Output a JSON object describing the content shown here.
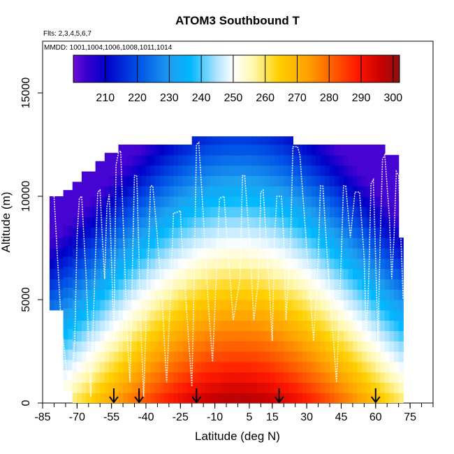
{
  "chart_data": {
    "type": "heatmap",
    "title": "ATOM3 Southbound T",
    "subtitle_flights": "Flts: 2,3,4,5,6,7",
    "subtitle_dates": "MMDD: 1001,1004,1006,1008,1011,1014",
    "xlabel": "Latitude (deg N)",
    "ylabel": "Altitude (m)",
    "xlim": [
      -85,
      85
    ],
    "ylim": [
      0,
      17500
    ],
    "x_ticks": [
      -85,
      -70,
      -55,
      -40,
      -25,
      -10,
      5,
      15,
      30,
      45,
      60,
      75
    ],
    "y_ticks": [
      0,
      5000,
      10000,
      15000
    ],
    "colorbar": {
      "range": [
        200,
        302
      ],
      "ticks": [
        210,
        220,
        230,
        240,
        250,
        260,
        270,
        280,
        290,
        300
      ]
    },
    "arrow_latitudes": [
      -54,
      -43,
      -18,
      18,
      60
    ],
    "flight_track_points": [
      [
        -80,
        10000
      ],
      [
        -79,
        8000
      ],
      [
        -78,
        6000
      ],
      [
        -77,
        4000
      ],
      [
        -75,
        2000
      ],
      [
        -73,
        300
      ],
      [
        -71,
        3000
      ],
      [
        -70,
        8000
      ],
      [
        -69,
        9900
      ],
      [
        -68,
        10000
      ],
      [
        -67,
        8000
      ],
      [
        -66,
        6000
      ],
      [
        -65,
        3000
      ],
      [
        -64,
        300
      ],
      [
        -62,
        7000
      ],
      [
        -61,
        10200
      ],
      [
        -60,
        10300
      ],
      [
        -59,
        8000
      ],
      [
        -58,
        6000
      ],
      [
        -57,
        9500
      ],
      [
        -56,
        10100
      ],
      [
        -55,
        7000
      ],
      [
        -54,
        3000
      ],
      [
        -53,
        11500
      ],
      [
        -52,
        12100
      ],
      [
        -51,
        12200
      ],
      [
        -50,
        9000
      ],
      [
        -49,
        6000
      ],
      [
        -48,
        3000
      ],
      [
        -47,
        1000
      ],
      [
        -46,
        6000
      ],
      [
        -45,
        11000
      ],
      [
        -44,
        11000
      ],
      [
        -43,
        7000
      ],
      [
        -42,
        3000
      ],
      [
        -41,
        300
      ],
      [
        -39,
        7000
      ],
      [
        -38,
        10500
      ],
      [
        -37,
        10500
      ],
      [
        -35,
        8000
      ],
      [
        -33,
        5000
      ],
      [
        -31,
        1000
      ],
      [
        -29,
        6000
      ],
      [
        -28,
        9200
      ],
      [
        -27,
        9200
      ],
      [
        -25,
        9300
      ],
      [
        -24,
        7000
      ],
      [
        -22,
        4000
      ],
      [
        -20,
        800
      ],
      [
        -19,
        6000
      ],
      [
        -18,
        12500
      ],
      [
        -17,
        12600
      ],
      [
        -15,
        9000
      ],
      [
        -13,
        5000
      ],
      [
        -11,
        2000
      ],
      [
        -9,
        7000
      ],
      [
        -8,
        9900
      ],
      [
        -6,
        10000
      ],
      [
        -4,
        7000
      ],
      [
        -2,
        4000
      ],
      [
        1,
        6000
      ],
      [
        2,
        11000
      ],
      [
        3,
        11000
      ],
      [
        5,
        8000
      ],
      [
        7,
        4000
      ],
      [
        9,
        6000
      ],
      [
        10,
        10200
      ],
      [
        11,
        10300
      ],
      [
        13,
        7000
      ],
      [
        15,
        3000
      ],
      [
        16,
        8000
      ],
      [
        17,
        10000
      ],
      [
        19,
        10000
      ],
      [
        20,
        8000
      ],
      [
        21,
        4000
      ],
      [
        23,
        8000
      ],
      [
        24,
        12400
      ],
      [
        26,
        12400
      ],
      [
        27,
        12000
      ],
      [
        29,
        9000
      ],
      [
        31,
        6000
      ],
      [
        33,
        3000
      ],
      [
        35,
        7000
      ],
      [
        36,
        10500
      ],
      [
        37,
        10500
      ],
      [
        39,
        7000
      ],
      [
        41,
        4000
      ],
      [
        43,
        1000
      ],
      [
        45,
        7000
      ],
      [
        46,
        10500
      ],
      [
        47,
        10500
      ],
      [
        49,
        8000
      ],
      [
        51,
        10200
      ],
      [
        53,
        10200
      ],
      [
        55,
        7000
      ],
      [
        56,
        3000
      ],
      [
        57,
        6000
      ],
      [
        58,
        10600
      ],
      [
        59,
        10800
      ],
      [
        60,
        7000
      ],
      [
        61,
        3000
      ],
      [
        62,
        8000
      ],
      [
        63,
        11800
      ],
      [
        64,
        12000
      ],
      [
        66,
        9000
      ],
      [
        67,
        6000
      ],
      [
        68,
        8000
      ],
      [
        69,
        11200
      ],
      [
        70,
        11000
      ],
      [
        71,
        8000
      ],
      [
        72,
        5000
      ]
    ]
  }
}
